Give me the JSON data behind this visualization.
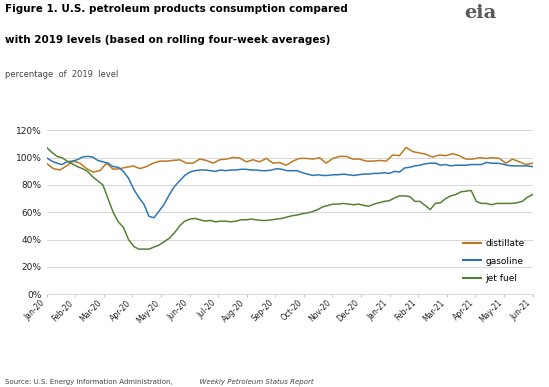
{
  "title_line1": "Figure 1. U.S. petroleum products consumption compared",
  "title_line2": "with 2019 levels (based on rolling four-week averages)",
  "subtitle": "percentage  of  2019  level",
  "source": "Source: U.S. Energy Information Administration,  Weekly Petroleum Status Report",
  "ylim": [
    0,
    1.22
  ],
  "yticks": [
    0.0,
    0.2,
    0.4,
    0.6,
    0.8,
    1.0,
    1.2
  ],
  "ytick_labels": [
    "0%",
    "20%",
    "40%",
    "60%",
    "80%",
    "100%",
    "120%"
  ],
  "x_labels": [
    "Jan-20",
    "Feb-20",
    "Mar-20",
    "Apr-20",
    "May-20",
    "Jun-20",
    "Jul-20",
    "Aug-20",
    "Sep-20",
    "Oct-20",
    "Nov-20",
    "Dec-20",
    "Jan-21",
    "Feb-21",
    "Mar-21",
    "Apr-21",
    "May-21",
    "Jun-21"
  ],
  "distillate_color": "#C07820",
  "gasoline_color": "#2E75B6",
  "jetfuel_color": "#548235",
  "distillate": [
    0.958,
    0.92,
    0.91,
    0.94,
    0.975,
    0.96,
    0.92,
    0.895,
    0.905,
    0.96,
    0.915,
    0.92,
    0.93,
    0.94,
    0.92,
    0.935,
    0.96,
    0.975,
    0.975,
    0.98,
    0.985,
    0.96,
    0.96,
    0.99,
    0.98,
    0.96,
    0.985,
    0.99,
    1.002,
    0.997,
    0.97,
    0.985,
    0.97,
    0.995,
    0.96,
    0.965,
    0.945,
    0.975,
    0.995,
    0.995,
    0.99,
    1.0,
    0.96,
    0.995,
    1.01,
    1.01,
    0.99,
    0.99,
    0.975,
    0.975,
    0.98,
    0.975,
    1.02,
    1.015,
    1.075,
    1.045,
    1.035,
    1.025,
    1.005,
    1.02,
    1.015,
    1.03,
    1.015,
    0.99,
    0.99,
    1.0,
    0.995,
    1.0,
    0.995,
    0.96,
    0.99,
    0.97,
    0.95,
    0.96
  ],
  "gasoline": [
    1.0,
    0.975,
    0.96,
    0.95,
    0.97,
    0.975,
    0.985,
    1.005,
    1.01,
    1.005,
    0.98,
    0.97,
    0.96,
    0.935,
    0.93,
    0.9,
    0.85,
    0.77,
    0.71,
    0.66,
    0.57,
    0.56,
    0.61,
    0.66,
    0.73,
    0.79,
    0.83,
    0.87,
    0.895,
    0.905,
    0.91,
    0.91,
    0.905,
    0.9,
    0.91,
    0.905,
    0.91,
    0.91,
    0.915,
    0.915,
    0.91,
    0.91,
    0.905,
    0.905,
    0.91,
    0.92,
    0.915,
    0.905,
    0.905,
    0.905,
    0.89,
    0.88,
    0.87,
    0.875,
    0.87,
    0.87,
    0.875,
    0.875,
    0.88,
    0.875,
    0.87,
    0.875,
    0.88,
    0.88,
    0.885,
    0.885,
    0.89,
    0.885,
    0.9,
    0.895,
    0.925,
    0.93,
    0.94,
    0.945,
    0.955,
    0.96,
    0.96,
    0.945,
    0.95,
    0.94,
    0.945,
    0.945,
    0.945,
    0.95,
    0.95,
    0.95,
    0.965,
    0.96,
    0.96,
    0.955,
    0.945,
    0.94,
    0.94,
    0.94,
    0.94,
    0.935
  ],
  "jetfuel": [
    1.075,
    1.04,
    1.01,
    1.0,
    0.975,
    0.955,
    0.935,
    0.92,
    0.9,
    0.86,
    0.83,
    0.8,
    0.7,
    0.6,
    0.53,
    0.49,
    0.4,
    0.35,
    0.33,
    0.33,
    0.33,
    0.345,
    0.36,
    0.385,
    0.41,
    0.45,
    0.5,
    0.535,
    0.55,
    0.555,
    0.545,
    0.535,
    0.54,
    0.53,
    0.535,
    0.535,
    0.53,
    0.535,
    0.545,
    0.545,
    0.55,
    0.545,
    0.54,
    0.54,
    0.545,
    0.55,
    0.555,
    0.565,
    0.575,
    0.58,
    0.59,
    0.595,
    0.605,
    0.62,
    0.64,
    0.65,
    0.66,
    0.66,
    0.665,
    0.66,
    0.655,
    0.66,
    0.65,
    0.645,
    0.66,
    0.67,
    0.68,
    0.685,
    0.705,
    0.72,
    0.72,
    0.715,
    0.68,
    0.68,
    0.65,
    0.62,
    0.665,
    0.67,
    0.7,
    0.72,
    0.73,
    0.75,
    0.755,
    0.76,
    0.68,
    0.665,
    0.665,
    0.655,
    0.665,
    0.665,
    0.665,
    0.665,
    0.67,
    0.68,
    0.71,
    0.73
  ]
}
